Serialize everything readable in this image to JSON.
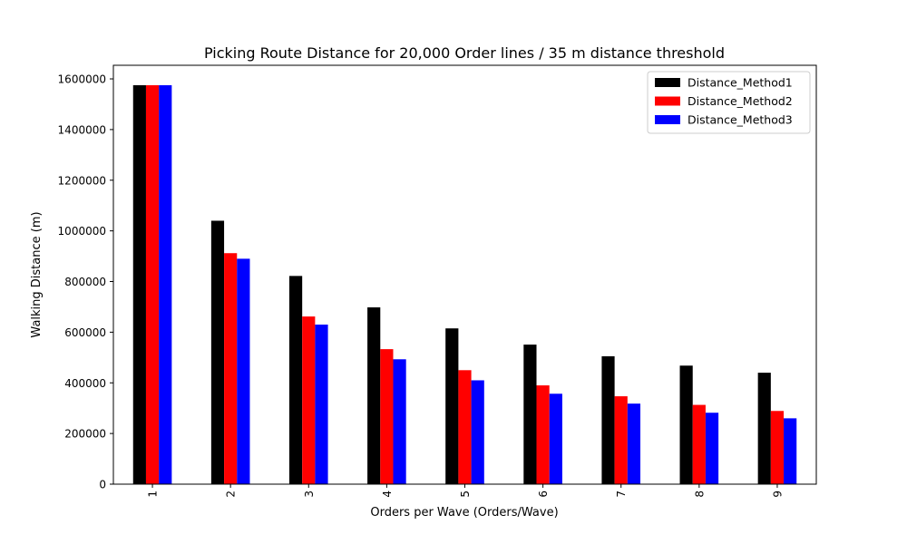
{
  "chart_data": {
    "type": "bar",
    "title": "Picking Route Distance for 20,000 Order lines / 35 m distance threshold",
    "xlabel": "Orders per Wave (Orders/Wave)",
    "ylabel": "Walking Distance (m)",
    "categories": [
      "1",
      "2",
      "3",
      "4",
      "5",
      "6",
      "7",
      "8",
      "9"
    ],
    "series": [
      {
        "name": "Distance_Method1",
        "color": "#000000",
        "values": [
          1575000,
          1040000,
          822000,
          698000,
          615000,
          551000,
          505000,
          468000,
          440000
        ]
      },
      {
        "name": "Distance_Method2",
        "color": "#ff0000",
        "values": [
          1575000,
          912000,
          662000,
          533000,
          450000,
          390000,
          347000,
          313000,
          289000
        ]
      },
      {
        "name": "Distance_Method3",
        "color": "#0000ff",
        "values": [
          1575000,
          890000,
          630000,
          493000,
          410000,
          357000,
          318000,
          282000,
          260000
        ]
      }
    ],
    "ylim": [
      0,
      1653750
    ],
    "yticks": [
      0,
      200000,
      400000,
      600000,
      800000,
      1000000,
      1200000,
      1400000,
      1600000
    ],
    "ytick_labels": [
      "0",
      "200000",
      "400000",
      "600000",
      "800000",
      "1000000",
      "1200000",
      "1400000",
      "1600000"
    ],
    "xtick_rotation": "vertical",
    "legend": "top-right",
    "grid": false
  }
}
